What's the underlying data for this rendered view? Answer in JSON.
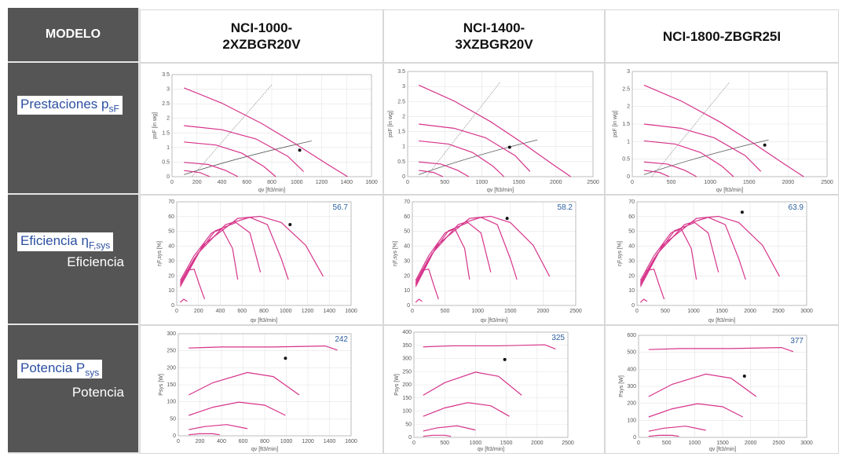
{
  "header": {
    "modelo": "MODELO",
    "columns": [
      "NCI-1000-\n2XZBGR20V",
      "NCI-1400-\n3XZBGR20V",
      "NCI-1800-ZBGR25I"
    ]
  },
  "rows": [
    {
      "label_main": "Prestaciones p",
      "label_sub_script": "sF",
      "label_secondary": ""
    },
    {
      "label_main": "Eficiencia η",
      "label_sub_script": "F,sys",
      "label_secondary": "Eficiencia"
    },
    {
      "label_main": "Potencia P",
      "label_sub_script": "sys",
      "label_secondary": "Potencia"
    }
  ],
  "colors": {
    "curve": "#d6338a",
    "side": "#555555",
    "value_text": "#2c5f9e"
  },
  "chart_data": [
    {
      "type": "line",
      "model": "NCI-1000-2XZBGR20V",
      "xlabel": "qv [ft3/min]",
      "ylabel": "psF [in wg]",
      "xticks": [
        0,
        200,
        400,
        600,
        800,
        1000,
        1200,
        1400,
        1600
      ],
      "yticks": [
        0,
        0.5,
        1,
        1.5,
        2,
        2.5,
        3,
        3.5
      ]
    },
    {
      "type": "line",
      "model": "NCI-1400-3XZBGR20V",
      "xlabel": "qv [ft3/min]",
      "ylabel": "psF [in wg]",
      "xticks": [
        0,
        500,
        1000,
        1500,
        2000,
        2500
      ],
      "yticks": [
        0,
        0.5,
        1,
        1.5,
        2,
        2.5,
        3,
        3.5
      ]
    },
    {
      "type": "line",
      "model": "NCI-1800-ZBGR25I",
      "xlabel": "qv [ft3/min]",
      "ylabel": "psF [in wg]",
      "xticks": [
        0,
        500,
        1000,
        1500,
        2000,
        2500
      ],
      "yticks": [
        0,
        0.5,
        1,
        1.5,
        2,
        2.5,
        3
      ]
    },
    {
      "type": "line",
      "model": "NCI-1000-2XZBGR20V",
      "xlabel": "qv [ft3/min]",
      "ylabel": "ηF,sys [%]",
      "xticks": [
        0,
        200,
        400,
        600,
        800,
        1000,
        1200,
        1400,
        1600
      ],
      "yticks": [
        0,
        10,
        20,
        30,
        40,
        50,
        60,
        70
      ],
      "value": "56.7"
    },
    {
      "type": "line",
      "model": "NCI-1400-3XZBGR20V",
      "xlabel": "qv [ft3/min]",
      "ylabel": "ηF,sys [%]",
      "xticks": [
        0,
        500,
        1000,
        1500,
        2000,
        2500
      ],
      "yticks": [
        0,
        10,
        20,
        30,
        40,
        50,
        60,
        70
      ],
      "value": "58.2"
    },
    {
      "type": "line",
      "model": "NCI-1800-ZBGR25I",
      "xlabel": "qv [ft3/min]",
      "ylabel": "ηF,sys [%]",
      "xticks": [
        0,
        500,
        1000,
        1500,
        2000,
        2500,
        3000
      ],
      "yticks": [
        0,
        10,
        20,
        30,
        40,
        50,
        60,
        70
      ],
      "value": "63.9"
    },
    {
      "type": "line",
      "model": "NCI-1000-2XZBGR20V",
      "xlabel": "qv [ft3/min]",
      "ylabel": "Psys [W]",
      "xticks": [
        0,
        200,
        400,
        600,
        800,
        1000,
        1200,
        1400,
        1600
      ],
      "yticks": [
        0,
        50,
        100,
        150,
        200,
        250,
        300
      ],
      "value": "242"
    },
    {
      "type": "line",
      "model": "NCI-1400-3XZBGR20V",
      "xlabel": "qv [ft3/min]",
      "ylabel": "Psys [W]",
      "xticks": [
        0,
        500,
        1000,
        1500,
        2000,
        2500
      ],
      "yticks": [
        0,
        50,
        100,
        150,
        200,
        250,
        300,
        350,
        400
      ],
      "value": "325"
    },
    {
      "type": "line",
      "model": "NCI-1800-ZBGR25I",
      "xlabel": "qv [ft3/min]",
      "ylabel": "Psys [W]",
      "xticks": [
        0,
        500,
        1000,
        1500,
        2000,
        2500,
        3000
      ],
      "yticks": [
        0,
        100,
        200,
        300,
        400,
        500,
        600
      ],
      "value": "377"
    }
  ]
}
